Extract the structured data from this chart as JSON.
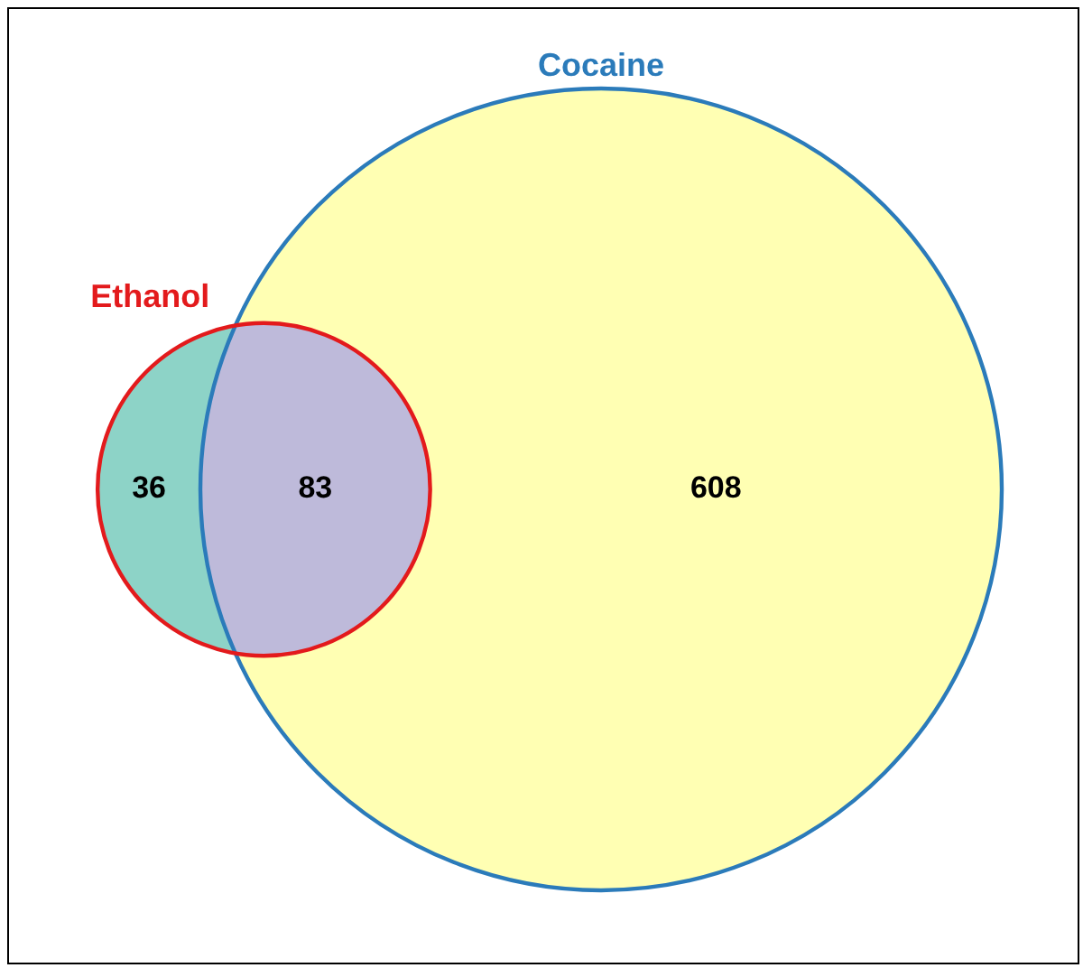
{
  "chart_data": {
    "type": "other",
    "categories": [
      null,
      null,
      null
    ],
    "values": [
      36,
      83,
      608
    ],
    "colors": [
      "#8dd3c7",
      "#bebada",
      "#ffffb3"
    ],
    "data_labels": true,
    "annotations": [
      "Ethanol",
      "Cocaine"
    ]
  }
}
